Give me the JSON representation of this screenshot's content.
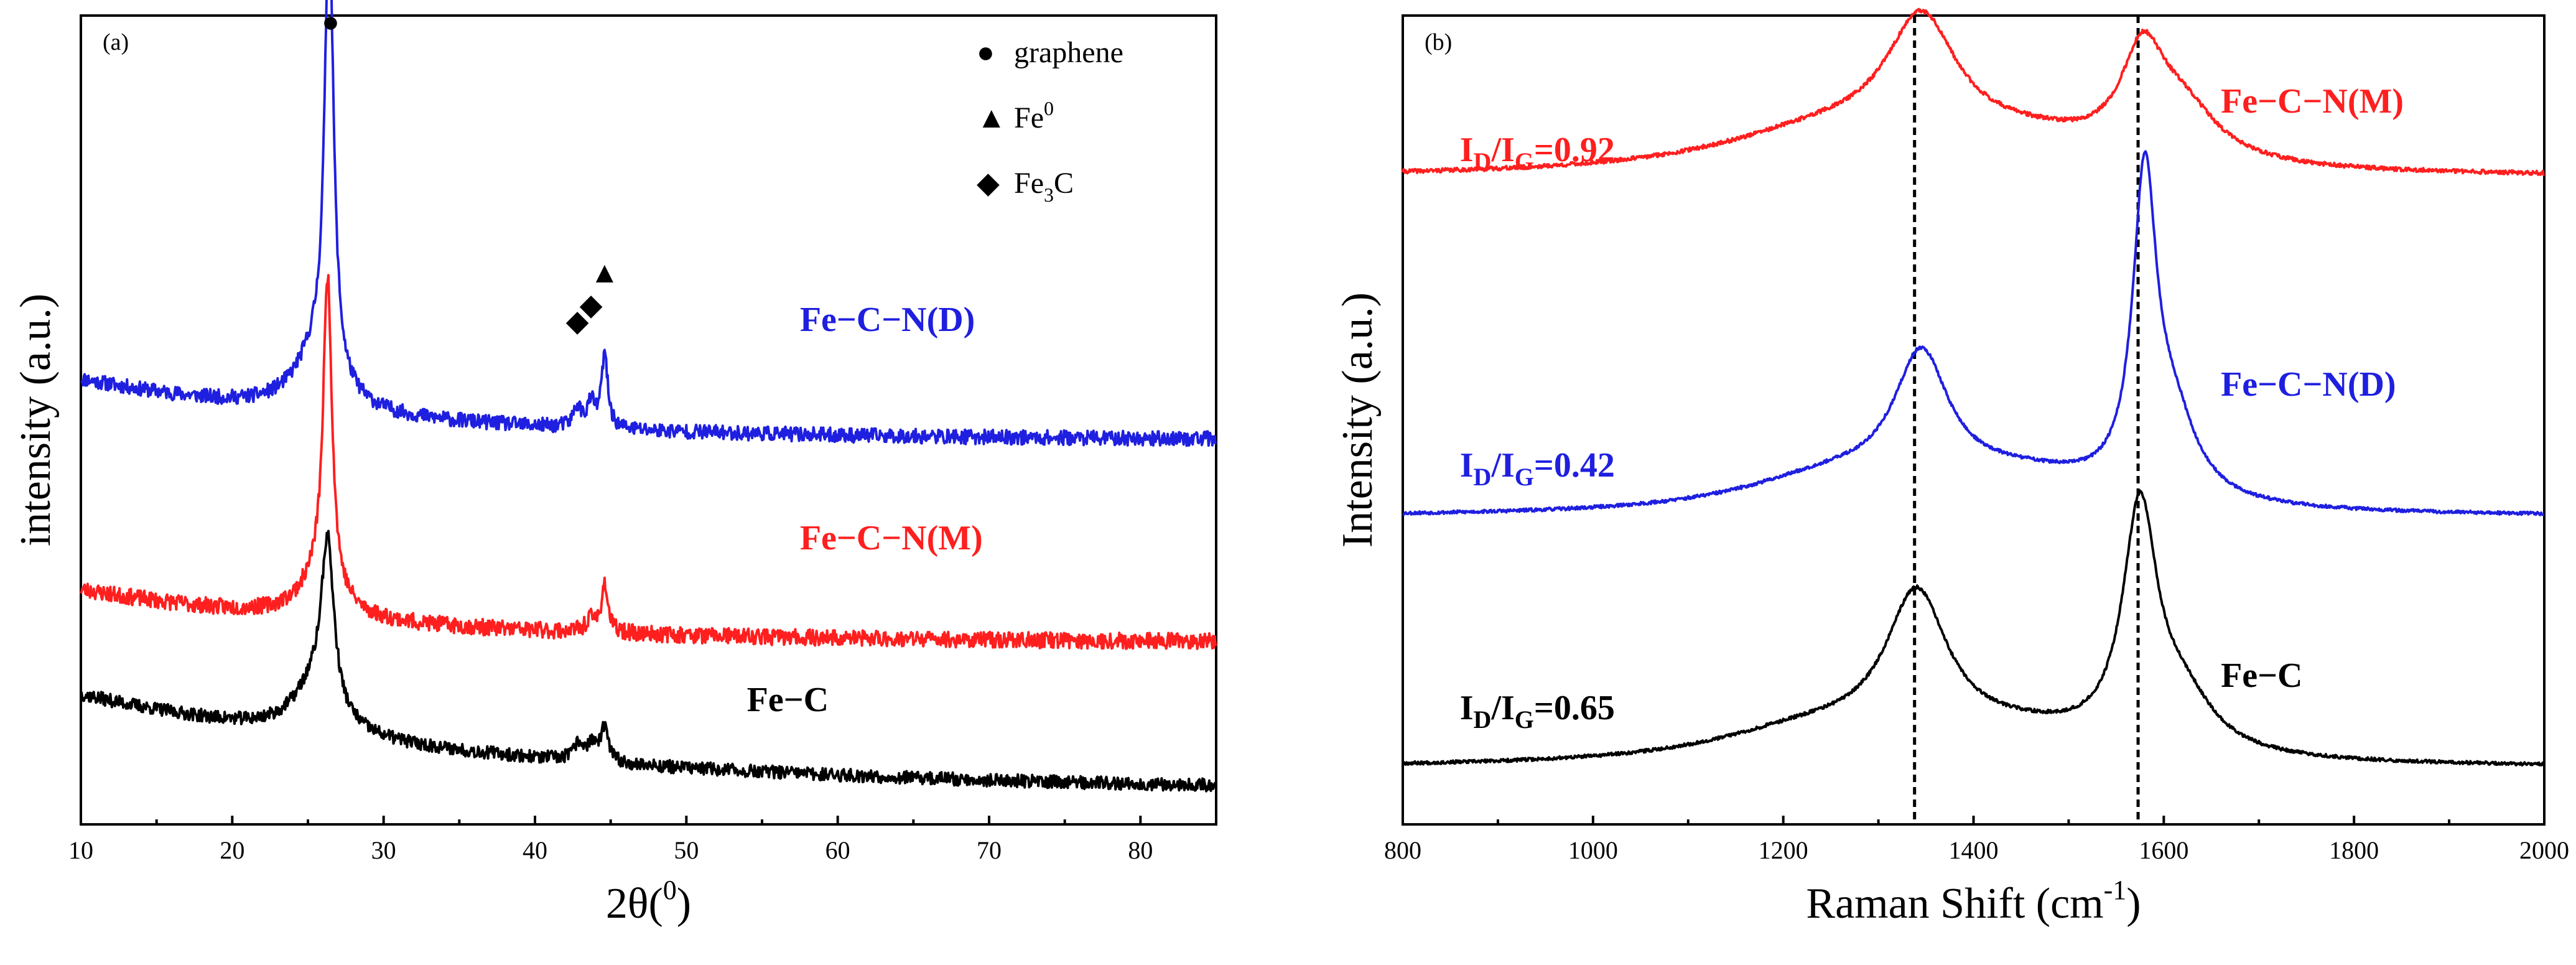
{
  "chart_data": [
    {
      "type": "line",
      "panel": "(a)",
      "xlabel": "2θ(",
      "xlabel_sup": "0",
      "xlabel_close": ")",
      "ylabel": "intensity (a.u.)",
      "xlim": [
        10,
        85
      ],
      "ylim": [
        0,
        100
      ],
      "xticks": [
        10,
        20,
        30,
        40,
        50,
        60,
        70,
        80
      ],
      "y_tick_labels": false,
      "series": [
        {
          "name": "Fe−C−N(D)",
          "color": "#1f1fe0",
          "noise": 0.9,
          "seed": 11,
          "offset": 49,
          "base_start": 6,
          "base_end": -1.5,
          "baseline_decay": 0.05,
          "peaks": [
            {
              "x": 26.4,
              "h": 56,
              "w": 0.35
            },
            {
              "x": 25.6,
              "h": 7,
              "w": 1.8
            },
            {
              "x": 42.8,
              "h": 2.5,
              "w": 0.3
            },
            {
              "x": 43.7,
              "h": 3,
              "w": 0.3
            },
            {
              "x": 44.6,
              "h": 9,
              "w": 0.25
            }
          ]
        },
        {
          "name": "Fe−C−N(M)",
          "color": "#ff1f1f",
          "noise": 1.0,
          "seed": 23,
          "offset": 24,
          "base_start": 5,
          "base_end": -1.5,
          "baseline_decay": 0.05,
          "peaks": [
            {
              "x": 26.3,
              "h": 38,
              "w": 0.35
            },
            {
              "x": 25.8,
              "h": 5,
              "w": 1.6
            },
            {
              "x": 43.7,
              "h": 1.5,
              "w": 0.4
            },
            {
              "x": 44.6,
              "h": 6,
              "w": 0.25
            }
          ]
        },
        {
          "name": "Fe−C",
          "color": "#000000",
          "noise": 0.8,
          "seed": 37,
          "offset": 5,
          "base_start": 11,
          "base_end": -1,
          "baseline_decay": 0.035,
          "peaks": [
            {
              "x": 26.3,
              "h": 20,
              "w": 0.5
            },
            {
              "x": 25.5,
              "h": 6,
              "w": 1.8
            },
            {
              "x": 42.9,
              "h": 2,
              "w": 0.4
            },
            {
              "x": 43.8,
              "h": 2,
              "w": 0.4
            },
            {
              "x": 44.6,
              "h": 4,
              "w": 0.3
            }
          ]
        }
      ],
      "series_labels": [
        {
          "text": "Fe−C−N(D)",
          "color": "#1f1fe0",
          "x": 57.5,
          "y": 61
        },
        {
          "text": "Fe−C−N(M)",
          "color": "#ff1f1f",
          "x": 57.5,
          "y": 34
        },
        {
          "text": "Fe−C",
          "color": "#000000",
          "x": 54,
          "y": 14
        }
      ],
      "legend": [
        {
          "marker": "●",
          "label": "graphene",
          "sub": "",
          "sup": "",
          "tail": ""
        },
        {
          "marker": "▲",
          "label": "Fe",
          "sub": "",
          "sup": "0",
          "tail": ""
        },
        {
          "marker": "◆",
          "label": "Fe",
          "sub": "3",
          "sup": "",
          "tail": "C"
        }
      ],
      "peak_markers": [
        {
          "marker": "●",
          "x": 26.5,
          "y": 98
        },
        {
          "marker": "◆",
          "x": 42.8,
          "y": 61
        },
        {
          "marker": "◆",
          "x": 43.7,
          "y": 63
        },
        {
          "marker": "▲",
          "x": 44.6,
          "y": 67
        }
      ]
    },
    {
      "type": "line",
      "panel": "(b)",
      "xlabel": "Raman Shift (cm",
      "xlabel_sup": "-1",
      "xlabel_close": ")",
      "ylabel": "Intensity (a.u.)",
      "xlim": [
        800,
        2000
      ],
      "ylim": [
        0,
        100
      ],
      "xticks": [
        800,
        1000,
        1200,
        1400,
        1600,
        1800,
        2000
      ],
      "y_tick_labels": false,
      "dashed_lines_at": [
        1338,
        1573
      ],
      "series": [
        {
          "name": "Fe−C−N(M)",
          "color": "#ff1f1f",
          "noise": 0.25,
          "seed": 41,
          "offset": 80,
          "base_start": 0,
          "base_end": 0,
          "baseline_decay": 0,
          "peaks": [
            {
              "x": 1345,
              "h": 15,
              "w": 45
            },
            {
              "x": 1250,
              "h": 5,
              "w": 150
            },
            {
              "x": 1578,
              "h": 12,
              "w": 28
            },
            {
              "x": 1620,
              "h": 6,
              "w": 45
            },
            {
              "x": 1450,
              "h": 3,
              "w": 120
            }
          ]
        },
        {
          "name": "Fe−C−N(D)",
          "color": "#1f1fe0",
          "noise": 0.2,
          "seed": 53,
          "offset": 38,
          "base_start": 0,
          "base_end": 0,
          "baseline_decay": 0,
          "peaks": [
            {
              "x": 1345,
              "h": 16,
              "w": 35
            },
            {
              "x": 1250,
              "h": 4,
              "w": 120
            },
            {
              "x": 1580,
              "h": 38,
              "w": 15
            },
            {
              "x": 1610,
              "h": 9,
              "w": 30
            },
            {
              "x": 1450,
              "h": 4,
              "w": 120
            }
          ]
        },
        {
          "name": "Fe−C",
          "color": "#000000",
          "noise": 0.2,
          "seed": 67,
          "offset": 7,
          "base_start": 0,
          "base_end": 0,
          "baseline_decay": 0,
          "peaks": [
            {
              "x": 1340,
              "h": 18,
              "w": 40
            },
            {
              "x": 1230,
              "h": 4,
              "w": 130
            },
            {
              "x": 1575,
              "h": 29,
              "w": 22
            },
            {
              "x": 1620,
              "h": 6,
              "w": 40
            },
            {
              "x": 1450,
              "h": 3,
              "w": 120
            }
          ]
        }
      ],
      "series_labels": [
        {
          "text": "Fe−C−N(M)",
          "color": "#ff1f1f",
          "x": 1660,
          "y": 88
        },
        {
          "text": "Fe−C−N(D)",
          "color": "#1f1fe0",
          "x": 1660,
          "y": 53
        },
        {
          "text": "Fe−C",
          "color": "#000000",
          "x": 1660,
          "y": 17
        }
      ],
      "ratio_labels": [
        {
          "text": "I",
          "sub1": "D",
          "mid": "/I",
          "sub2": "G",
          "value": "=0.92",
          "color": "#ff1f1f",
          "x": 860,
          "y": 82
        },
        {
          "text": "I",
          "sub1": "D",
          "mid": "/I",
          "sub2": "G",
          "value": "=0.42",
          "color": "#1f1fe0",
          "x": 860,
          "y": 43
        },
        {
          "text": "I",
          "sub1": "D",
          "mid": "/I",
          "sub2": "G",
          "value": "=0.65",
          "color": "#000000",
          "x": 860,
          "y": 13
        }
      ]
    }
  ]
}
